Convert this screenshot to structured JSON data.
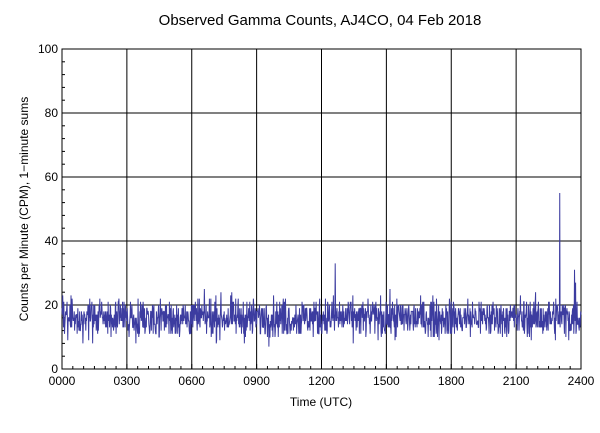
{
  "chart_data": {
    "type": "line",
    "title": "Observed Gamma Counts, AJ4CO, 04 Feb 2018",
    "xlabel": "Time (UTC)",
    "ylabel": "Counts per Minute (CPM), 1−minute sums",
    "xlim": [
      0,
      1440
    ],
    "ylim": [
      0,
      100
    ],
    "x_ticks": [
      0,
      180,
      360,
      540,
      720,
      900,
      1080,
      1260,
      1440
    ],
    "x_tick_labels": [
      "0000",
      "0300",
      "0600",
      "0900",
      "1200",
      "1500",
      "1800",
      "2100",
      "2400"
    ],
    "y_ticks": [
      0,
      20,
      40,
      60,
      80,
      100
    ],
    "y_tick_labels": [
      "0",
      "20",
      "40",
      "60",
      "80",
      "100"
    ],
    "grid": true,
    "series": [
      {
        "color": "#3c3ca0",
        "interval_minutes": 1,
        "baseline": 16,
        "noise_range": [
          6,
          28
        ],
        "spikes": [
          {
            "x": 1381,
            "y": 55
          },
          {
            "x": 1422,
            "y": 31
          },
          {
            "x": 758,
            "y": 33
          },
          {
            "x": 1425,
            "y": 27
          }
        ]
      }
    ]
  }
}
